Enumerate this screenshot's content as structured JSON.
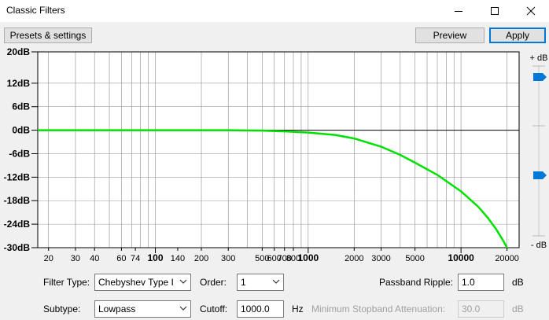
{
  "window": {
    "title": "Classic Filters"
  },
  "toolbar": {
    "presets_label": "Presets & settings",
    "preview_label": "Preview",
    "apply_label": "Apply"
  },
  "graph": {
    "y_ticks": [
      "20dB",
      "12dB",
      "6dB",
      "0dB",
      "-6dB",
      "-12dB",
      "-18dB",
      "-24dB",
      "-30dB"
    ],
    "y_values": [
      20,
      12,
      6,
      0,
      -6,
      -12,
      -18,
      -24,
      -30
    ],
    "x_ticks": [
      {
        "f": 20,
        "label": "20",
        "bold": false
      },
      {
        "f": 30,
        "label": "30",
        "bold": false
      },
      {
        "f": 40,
        "label": "40",
        "bold": false
      },
      {
        "f": 60,
        "label": "60",
        "bold": false
      },
      {
        "f": 74,
        "label": "74",
        "bold": false
      },
      {
        "f": 100,
        "label": "100",
        "bold": true
      },
      {
        "f": 140,
        "label": "140",
        "bold": false
      },
      {
        "f": 200,
        "label": "200",
        "bold": false
      },
      {
        "f": 300,
        "label": "300",
        "bold": false
      },
      {
        "f": 500,
        "label": "500",
        "bold": false
      },
      {
        "f": 600,
        "label": "600",
        "bold": false
      },
      {
        "f": 700,
        "label": "700",
        "bold": false
      },
      {
        "f": 800,
        "label": "800",
        "bold": false
      },
      {
        "f": 1000,
        "label": "1000",
        "bold": true
      },
      {
        "f": 2000,
        "label": "2000",
        "bold": false
      },
      {
        "f": 3000,
        "label": "3000",
        "bold": false
      },
      {
        "f": 5000,
        "label": "5000",
        "bold": false
      },
      {
        "f": 10000,
        "label": "10000",
        "bold": true
      },
      {
        "f": 20000,
        "label": "20000",
        "bold": false
      }
    ],
    "curve_color": "#00e000",
    "slider_color": "#0078d7",
    "right_scale": {
      "top_label": "+ dB",
      "bottom_label": "- dB"
    }
  },
  "chart_data": {
    "type": "line",
    "xscale": "log",
    "xlim": [
      17,
      24000
    ],
    "ylim": [
      -30,
      20
    ],
    "series": [
      {
        "x": [
          17,
          50,
          100,
          300,
          500,
          700,
          800,
          1000,
          1500,
          2000,
          3000,
          4000,
          5000,
          7000,
          10000,
          13000,
          15000,
          17000,
          19000,
          20000,
          21000
        ],
        "y": [
          0,
          0,
          0,
          0,
          -0.1,
          -0.3,
          -0.4,
          -0.6,
          -1.2,
          -2.1,
          -4.2,
          -6.3,
          -8.3,
          -11.4,
          -15.6,
          -19.6,
          -22.4,
          -25.3,
          -28.4,
          -30,
          -32
        ]
      }
    ]
  },
  "controls": {
    "filter_type_label": "Filter Type:",
    "filter_type_value": "Chebyshev Type I",
    "order_label": "Order:",
    "order_value": "1",
    "passband_ripple_label": "Passband Ripple:",
    "passband_ripple_value": "1.0",
    "passband_ripple_unit": "dB",
    "subtype_label": "Subtype:",
    "subtype_value": "Lowpass",
    "cutoff_label": "Cutoff:",
    "cutoff_value": "1000.0",
    "cutoff_unit": "Hz",
    "min_stopband_label": "Minimum Stopband Attenuation:",
    "min_stopband_value": "30.0",
    "min_stopband_unit": "dB"
  }
}
